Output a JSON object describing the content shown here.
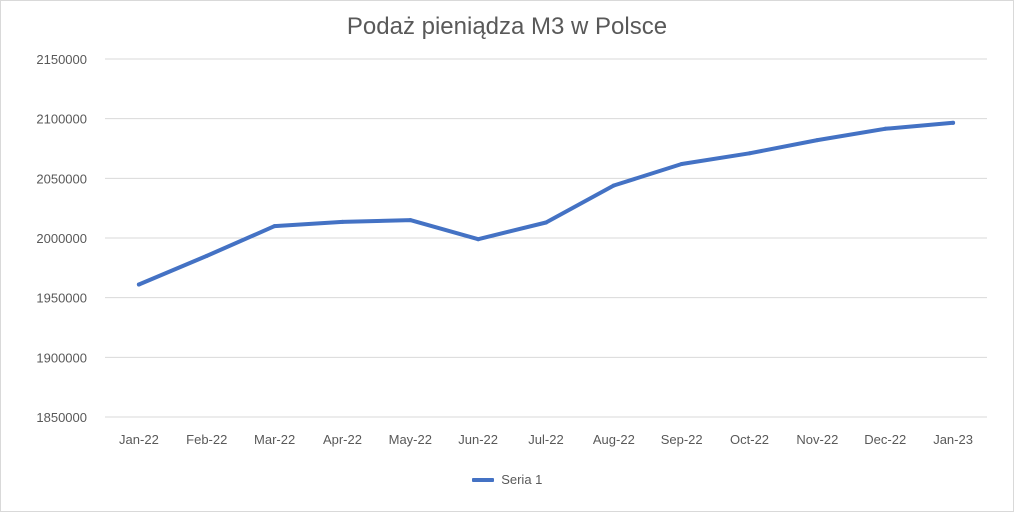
{
  "chart_data": {
    "type": "line",
    "title": "Podaż pieniądza M3 w Polsce",
    "xlabel": "",
    "ylabel": "",
    "categories": [
      "Jan-22",
      "Feb-22",
      "Mar-22",
      "Apr-22",
      "May-22",
      "Jun-22",
      "Jul-22",
      "Aug-22",
      "Sep-22",
      "Oct-22",
      "Nov-22",
      "Dec-22",
      "Jan-23"
    ],
    "series": [
      {
        "name": "Seria 1",
        "color": "#4472c4",
        "values": [
          1961000,
          1985000,
          2010000,
          2013500,
          2015000,
          1999000,
          2013000,
          2044000,
          2062000,
          2071000,
          2082000,
          2091500,
          2096500
        ]
      }
    ],
    "ylim": [
      1850000,
      2150000
    ],
    "yticks": [
      "1850000",
      "1900000",
      "1950000",
      "2000000",
      "2050000",
      "2100000",
      "2150000"
    ],
    "grid": true,
    "legend": "bottom"
  }
}
